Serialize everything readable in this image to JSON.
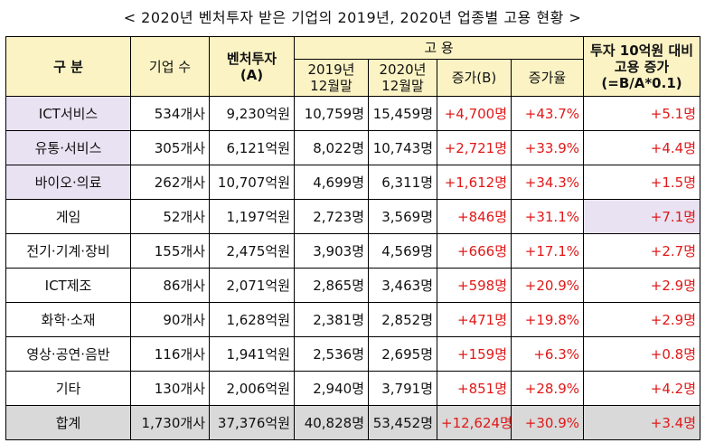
{
  "title": "< 2020년 벤처투자 받은 기업의 2019년, 2020년 업종별 고용 현황 >",
  "headers": {
    "category": "구   분",
    "companies": "기업 수",
    "investment_line1": "벤처투자",
    "investment_line2": "(A)",
    "employment": "고   용",
    "y2019_line1": "2019년",
    "y2019_line2": "12월말",
    "y2020_line1": "2020년",
    "y2020_line2": "12월말",
    "increase": "증가(B)",
    "rate": "증가율",
    "per10_line1": "투자 10억원 대비",
    "per10_line2": "고용 증가",
    "per10_line3": "(=B/A*0.1)"
  },
  "rows": [
    {
      "category": "ICT서비스",
      "companies": "534개사",
      "investment": "9,230억원",
      "y2019": "10,759명",
      "y2020": "15,459명",
      "increase": "+4,700명",
      "rate": "+43.7%",
      "per10": "+5.1명"
    },
    {
      "category": "유통·서비스",
      "companies": "305개사",
      "investment": "6,121억원",
      "y2019": "8,022명",
      "y2020": "10,743명",
      "increase": "+2,721명",
      "rate": "+33.9%",
      "per10": "+4.4명"
    },
    {
      "category": "바이오·의료",
      "companies": "262개사",
      "investment": "10,707억원",
      "y2019": "4,699명",
      "y2020": "6,311명",
      "increase": "+1,612명",
      "rate": "+34.3%",
      "per10": "+1.5명"
    },
    {
      "category": "게임",
      "companies": "52개사",
      "investment": "1,197억원",
      "y2019": "2,723명",
      "y2020": "3,569명",
      "increase": "+846명",
      "rate": "+31.1%",
      "per10": "+7.1명"
    },
    {
      "category": "전기·기계·장비",
      "companies": "155개사",
      "investment": "2,475억원",
      "y2019": "3,903명",
      "y2020": "4,569명",
      "increase": "+666명",
      "rate": "+17.1%",
      "per10": "+2.7명"
    },
    {
      "category": "ICT제조",
      "companies": "86개사",
      "investment": "2,071억원",
      "y2019": "2,865명",
      "y2020": "3,463명",
      "increase": "+598명",
      "rate": "+20.9%",
      "per10": "+2.9명"
    },
    {
      "category": "화학·소재",
      "companies": "90개사",
      "investment": "1,628억원",
      "y2019": "2,381명",
      "y2020": "2,852명",
      "increase": "+471명",
      "rate": "+19.8%",
      "per10": "+2.9명"
    },
    {
      "category": "영상·공연·음반",
      "companies": "116개사",
      "investment": "1,941억원",
      "y2019": "2,536명",
      "y2020": "2,695명",
      "increase": "+159명",
      "rate": "+6.3%",
      "per10": "+0.8명"
    },
    {
      "category": "기타",
      "companies": "130개사",
      "investment": "2,006억원",
      "y2019": "2,940명",
      "y2020": "3,791명",
      "increase": "+851명",
      "rate": "+28.9%",
      "per10": "+4.2명"
    }
  ],
  "total": {
    "category": "합계",
    "companies": "1,730개사",
    "investment": "37,376억원",
    "y2019": "40,828명",
    "y2020": "53,452명",
    "increase": "+12,624명",
    "rate": "+30.9%",
    "per10": "+3.4명"
  },
  "colors": {
    "header_bg": "#fbf3c4",
    "highlight_bg": "#e9e2f2",
    "total_bg": "#d9d9d9",
    "emphasis_text": "#e01818"
  }
}
